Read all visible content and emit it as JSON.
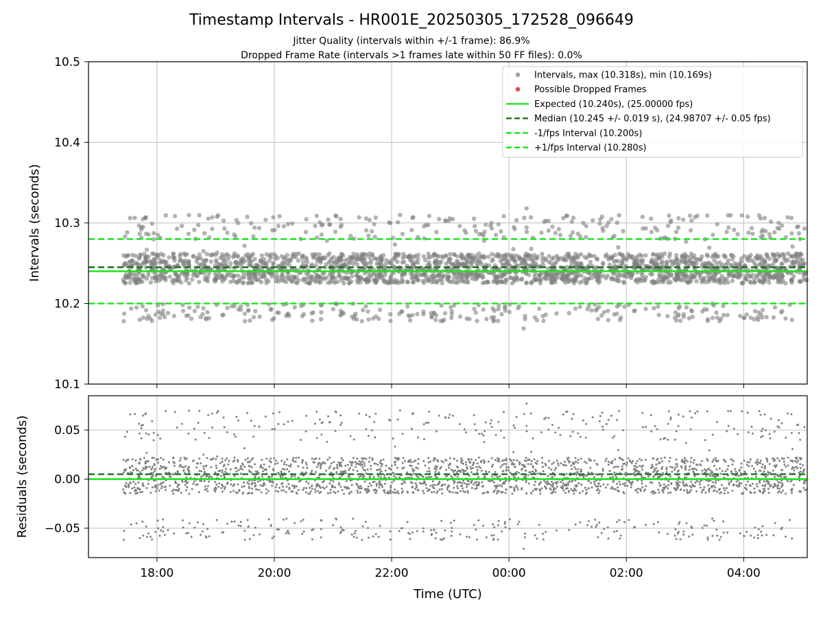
{
  "chart_data": {
    "type": "scatter",
    "title": "Timestamp Intervals - HR001E_20250305_172528_096649",
    "subtitles": [
      "Jitter Quality (intervals within +/-1 frame): 86.9%",
      "Dropped Frame Rate (intervals >1 frames late within 50 FF files): 0.0%"
    ],
    "xlabel": "Time (UTC)",
    "x_ticks": [
      "18:00",
      "20:00",
      "22:00",
      "00:00",
      "02:00",
      "04:00"
    ],
    "x_tick_hours": [
      18,
      20,
      22,
      24,
      26,
      28
    ],
    "x_range_hours": [
      16.833,
      29.083
    ],
    "data_x_range_hours": [
      17.425,
      29.083
    ],
    "grid": true,
    "colors": {
      "points": "#808080",
      "dropped": "#e8474a",
      "expected": "#1be51b",
      "median": "#1a6e1a",
      "fps_interval": "#1be51b"
    },
    "top_panel": {
      "ylabel": "Intervals (seconds)",
      "ylim": [
        10.1,
        10.5
      ],
      "y_ticks": [
        "10.1",
        "10.2",
        "10.3",
        "10.4",
        "10.5"
      ],
      "y_tick_values": [
        10.1,
        10.2,
        10.3,
        10.4,
        10.5
      ],
      "expected": 10.24,
      "median": 10.245,
      "minus_interval": 10.2,
      "plus_interval": 10.28,
      "max": 10.318,
      "min": 10.169,
      "core_band": [
        10.225,
        10.262
      ],
      "outer_band_upper": [
        10.28,
        10.31
      ],
      "outer_band_lower": [
        10.178,
        10.2
      ]
    },
    "bottom_panel": {
      "ylabel": "Residuals (seconds)",
      "ylim": [
        -0.08,
        0.085
      ],
      "y_ticks": [
        "−0.05",
        "0.00",
        "0.05"
      ],
      "y_tick_values": [
        -0.05,
        0.0,
        0.05
      ],
      "zero_line": 0.0,
      "median_offset": 0.005
    },
    "legend": {
      "placement": "top-right",
      "entries": [
        {
          "label": "Intervals, max (10.318s), min (10.169s)",
          "marker": "dot",
          "color": "#a0a0a0"
        },
        {
          "label": "Possible Dropped Frames",
          "marker": "dot",
          "color": "#e8474a"
        },
        {
          "label": "Expected (10.240s), (25.00000 fps)",
          "marker": "solid",
          "color": "#1be51b"
        },
        {
          "label": "Median (10.245 +/- 0.019 s), (24.98707 +/- 0.05 fps)",
          "marker": "dashed",
          "color": "#1a6e1a"
        },
        {
          "label": "-1/fps Interval (10.200s)",
          "marker": "dashed",
          "color": "#1be51b"
        },
        {
          "label": "+1/fps Interval (10.280s)",
          "marker": "dashed",
          "color": "#1be51b"
        }
      ]
    },
    "dropped_frames_count": 0
  }
}
